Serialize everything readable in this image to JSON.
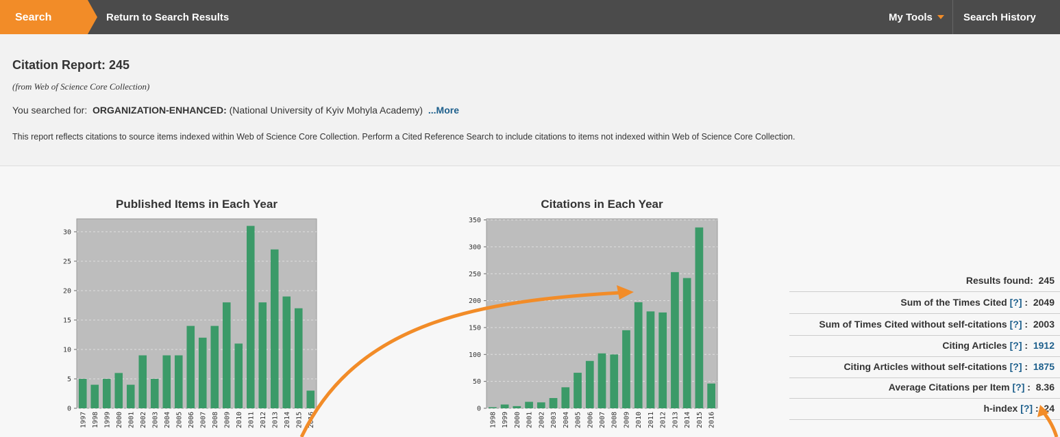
{
  "nav": {
    "search": "Search",
    "back": "Return to Search Results",
    "tools": "My Tools",
    "history": "Search History"
  },
  "header": {
    "title": "Citation Report: 245",
    "subtitle": "(from Web of Science Core Collection)",
    "searched_label": "You searched for:",
    "field": "ORGANIZATION-ENHANCED:",
    "query": "(National University of Kyiv Mohyla Academy)",
    "more": "...More",
    "note": "This report reflects citations to source items indexed within Web of Science Core Collection. Perform a Cited Reference Search to include citations to items not indexed within Web of Science Core Collection."
  },
  "chart_data": [
    {
      "type": "bar",
      "title": "Published Items in Each Year",
      "color": "#3b9a68",
      "categories": [
        "1997",
        "1998",
        "1999",
        "2000",
        "2001",
        "2002",
        "2003",
        "2004",
        "2005",
        "2006",
        "2007",
        "2008",
        "2009",
        "2010",
        "2011",
        "2012",
        "2013",
        "2014",
        "2015",
        "2016"
      ],
      "values": [
        5,
        4,
        5,
        6,
        4,
        9,
        5,
        9,
        9,
        14,
        12,
        14,
        18,
        11,
        31,
        18,
        27,
        19,
        17,
        3
      ],
      "ylim": [
        0,
        32.2
      ],
      "yticks": [
        0,
        5,
        10,
        15,
        20,
        25,
        30
      ],
      "grid": true
    },
    {
      "type": "bar",
      "title": "Citations in Each Year",
      "color": "#3b9a68",
      "categories": [
        "1998",
        "1999",
        "2000",
        "2001",
        "2002",
        "2003",
        "2004",
        "2005",
        "2006",
        "2007",
        "2008",
        "2009",
        "2010",
        "2011",
        "2012",
        "2013",
        "2014",
        "2015",
        "2016"
      ],
      "values": [
        2,
        7,
        4,
        12,
        11,
        19,
        39,
        66,
        88,
        102,
        100,
        145,
        197,
        180,
        178,
        253,
        242,
        336,
        46
      ],
      "ylim": [
        0,
        352
      ],
      "yticks": [
        0,
        50,
        100,
        150,
        200,
        250,
        300,
        350
      ],
      "grid": true
    }
  ],
  "stats": {
    "separator": ":",
    "rows": [
      {
        "label": "Results found:",
        "value": 245
      },
      {
        "label": "Sum of the Times Cited",
        "help": "[?]",
        "value": 2049
      },
      {
        "label": "Sum of Times Cited without self-citations",
        "help": "[?]",
        "value": 2003
      },
      {
        "label": "Citing Articles",
        "help": "[?]",
        "value": 1912,
        "link": true
      },
      {
        "label": "Citing Articles without self-citations",
        "help": "[?]",
        "value": 1875,
        "link": true
      },
      {
        "label": "Average Citations per Item",
        "help": "[?]",
        "value": 8.36
      },
      {
        "label": "h-index",
        "help": "[?]",
        "value": 24
      }
    ]
  }
}
